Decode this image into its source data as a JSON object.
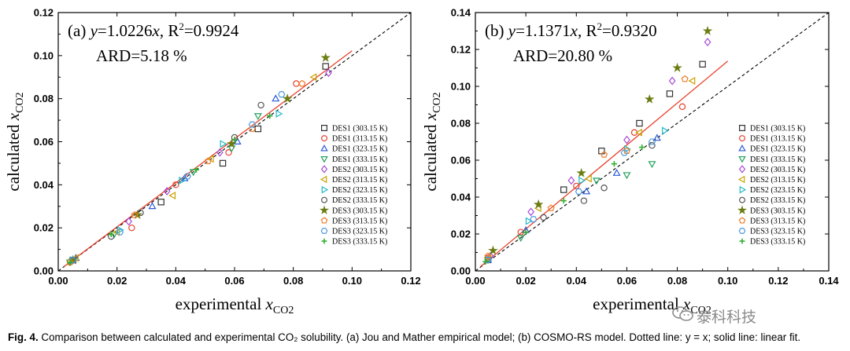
{
  "chart_data": [
    {
      "type": "scatter",
      "panel_label": "(a)",
      "equation_prefix": "y",
      "equation_mid": "=1.0226",
      "equation_x": "x",
      "equation_r2": ", R",
      "equation_r2sup": "2",
      "equation_r2val": "=0.9924",
      "ard": "ARD=5.18 %",
      "xlabel": "experimental x",
      "xlabel_sub": "CO2",
      "ylabel": "calculated x",
      "ylabel_sub": "CO2",
      "xlim": [
        0,
        0.12
      ],
      "ylim": [
        0,
        0.12
      ],
      "xticks": [
        "0.00",
        "0.02",
        "0.04",
        "0.06",
        "0.08",
        "0.10",
        "0.12"
      ],
      "yticks": [
        "0.00",
        "0.02",
        "0.04",
        "0.06",
        "0.08",
        "0.10",
        "0.12"
      ],
      "fit_slope": 1.0226,
      "fit_x_range": [
        0.002,
        0.1
      ],
      "legend_position": "right",
      "series": [
        {
          "name": "DES1 (303.15 K)",
          "marker": "square",
          "color": "#333333",
          "points": [
            [
              0.005,
              0.005
            ],
            [
              0.035,
              0.032
            ],
            [
              0.056,
              0.05
            ],
            [
              0.068,
              0.066
            ],
            [
              0.091,
              0.095
            ]
          ]
        },
        {
          "name": "DES1 (313.15 K)",
          "marker": "circle",
          "color": "#e8412c",
          "points": [
            [
              0.005,
              0.005
            ],
            [
              0.025,
              0.02
            ],
            [
              0.04,
              0.04
            ],
            [
              0.058,
              0.055
            ],
            [
              0.081,
              0.087
            ]
          ]
        },
        {
          "name": "DES1 (323.15 K)",
          "marker": "triangle-up",
          "color": "#2a5bd7",
          "points": [
            [
              0.006,
              0.006
            ],
            [
              0.032,
              0.03
            ],
            [
              0.043,
              0.043
            ],
            [
              0.061,
              0.06
            ],
            [
              0.074,
              0.08
            ]
          ]
        },
        {
          "name": "DES1 (333.15 K)",
          "marker": "triangle-down",
          "color": "#22a05a",
          "points": [
            [
              0.004,
              0.004
            ],
            [
              0.019,
              0.017
            ],
            [
              0.046,
              0.046
            ],
            [
              0.059,
              0.057
            ],
            [
              0.068,
              0.072
            ]
          ]
        },
        {
          "name": "DES2 (303.15 K)",
          "marker": "diamond",
          "color": "#a64ad6",
          "points": [
            [
              0.005,
              0.005
            ],
            [
              0.024,
              0.023
            ],
            [
              0.037,
              0.037
            ],
            [
              0.055,
              0.055
            ],
            [
              0.092,
              0.092
            ]
          ]
        },
        {
          "name": "DES2 (313.15 K)",
          "marker": "triangle-left",
          "color": "#c9a300",
          "points": [
            [
              0.006,
              0.006
            ],
            [
              0.02,
              0.018
            ],
            [
              0.039,
              0.035
            ],
            [
              0.052,
              0.052
            ],
            [
              0.087,
              0.09
            ]
          ]
        },
        {
          "name": "DES2 (323.15 K)",
          "marker": "triangle-right",
          "color": "#20b8c7",
          "points": [
            [
              0.005,
              0.005
            ],
            [
              0.021,
              0.019
            ],
            [
              0.042,
              0.042
            ],
            [
              0.056,
              0.059
            ],
            [
              0.075,
              0.073
            ]
          ]
        },
        {
          "name": "DES2 (333.15 K)",
          "marker": "circle",
          "color": "#555555",
          "points": [
            [
              0.005,
              0.005
            ],
            [
              0.018,
              0.016
            ],
            [
              0.028,
              0.027
            ],
            [
              0.06,
              0.062
            ],
            [
              0.069,
              0.077
            ]
          ]
        },
        {
          "name": "DES3 (303.15 K)",
          "marker": "star",
          "color": "#6b7d12",
          "points": [
            [
              0.005,
              0.005
            ],
            [
              0.027,
              0.026
            ],
            [
              0.059,
              0.059
            ],
            [
              0.078,
              0.08
            ],
            [
              0.091,
              0.099
            ]
          ]
        },
        {
          "name": "DES3 (313.15 K)",
          "marker": "pentagon",
          "color": "#f07a24",
          "points": [
            [
              0.004,
              0.004
            ],
            [
              0.026,
              0.026
            ],
            [
              0.051,
              0.051
            ],
            [
              0.066,
              0.066
            ],
            [
              0.083,
              0.087
            ]
          ]
        },
        {
          "name": "DES3 (323.15 K)",
          "marker": "hexagon",
          "color": "#4f9be0",
          "points": [
            [
              0.005,
              0.005
            ],
            [
              0.021,
              0.018
            ],
            [
              0.044,
              0.044
            ],
            [
              0.066,
              0.068
            ],
            [
              0.076,
              0.082
            ]
          ]
        },
        {
          "name": "DES3 (333.15 K)",
          "marker": "plus",
          "color": "#30b030",
          "points": [
            [
              0.004,
              0.004
            ],
            [
              0.018,
              0.017
            ],
            [
              0.047,
              0.047
            ],
            [
              0.06,
              0.061
            ],
            [
              0.072,
              0.072
            ]
          ]
        }
      ]
    },
    {
      "type": "scatter",
      "panel_label": "(b)",
      "equation_prefix": "y",
      "equation_mid": "=1.1371",
      "equation_x": "x",
      "equation_r2": ", R",
      "equation_r2sup": "2",
      "equation_r2val": "=0.9320",
      "ard": "ARD=20.80 %",
      "xlabel": "experimental x",
      "xlabel_sub": "CO2",
      "ylabel": "calculated x",
      "ylabel_sub": "CO2",
      "xlim": [
        0,
        0.14
      ],
      "ylim": [
        0,
        0.14
      ],
      "xticks": [
        "0.00",
        "0.02",
        "0.04",
        "0.06",
        "0.08",
        "0.10",
        "0.12",
        "0.14"
      ],
      "yticks": [
        "0.00",
        "0.02",
        "0.04",
        "0.06",
        "0.08",
        "0.10",
        "0.12",
        "0.14"
      ],
      "fit_slope": 1.1371,
      "fit_x_range": [
        0.002,
        0.1
      ],
      "legend_position": "right",
      "series": [
        {
          "name": "DES1 (303.15 K)",
          "marker": "square",
          "color": "#333333",
          "points": [
            [
              0.005,
              0.006
            ],
            [
              0.035,
              0.044
            ],
            [
              0.05,
              0.065
            ],
            [
              0.065,
              0.08
            ],
            [
              0.077,
              0.096
            ],
            [
              0.09,
              0.112
            ]
          ]
        },
        {
          "name": "DES1 (313.15 K)",
          "marker": "circle",
          "color": "#e8412c",
          "points": [
            [
              0.005,
              0.007
            ],
            [
              0.018,
              0.021
            ],
            [
              0.04,
              0.046
            ],
            [
              0.063,
              0.075
            ],
            [
              0.082,
              0.089
            ]
          ]
        },
        {
          "name": "DES1 (323.15 K)",
          "marker": "triangle-up",
          "color": "#2a5bd7",
          "points": [
            [
              0.005,
              0.006
            ],
            [
              0.02,
              0.022
            ],
            [
              0.044,
              0.043
            ],
            [
              0.056,
              0.053
            ],
            [
              0.072,
              0.072
            ]
          ]
        },
        {
          "name": "DES1 (333.15 K)",
          "marker": "triangle-down",
          "color": "#22a05a",
          "points": [
            [
              0.005,
              0.006
            ],
            [
              0.018,
              0.018
            ],
            [
              0.048,
              0.049
            ],
            [
              0.06,
              0.052
            ],
            [
              0.07,
              0.058
            ]
          ]
        },
        {
          "name": "DES2 (303.15 K)",
          "marker": "diamond",
          "color": "#a64ad6",
          "points": [
            [
              0.006,
              0.008
            ],
            [
              0.022,
              0.032
            ],
            [
              0.038,
              0.049
            ],
            [
              0.06,
              0.071
            ],
            [
              0.078,
              0.103
            ],
            [
              0.092,
              0.124
            ]
          ]
        },
        {
          "name": "DES2 (313.15 K)",
          "marker": "triangle-left",
          "color": "#c9a300",
          "points": [
            [
              0.005,
              0.007
            ],
            [
              0.025,
              0.034
            ],
            [
              0.045,
              0.05
            ],
            [
              0.065,
              0.075
            ],
            [
              0.086,
              0.103
            ]
          ]
        },
        {
          "name": "DES2 (323.15 K)",
          "marker": "triangle-right",
          "color": "#20b8c7",
          "points": [
            [
              0.005,
              0.006
            ],
            [
              0.021,
              0.027
            ],
            [
              0.042,
              0.049
            ],
            [
              0.06,
              0.066
            ],
            [
              0.075,
              0.076
            ]
          ]
        },
        {
          "name": "DES2 (333.15 K)",
          "marker": "circle",
          "color": "#555555",
          "points": [
            [
              0.005,
              0.006
            ],
            [
              0.027,
              0.029
            ],
            [
              0.043,
              0.038
            ],
            [
              0.051,
              0.045
            ],
            [
              0.07,
              0.068
            ]
          ]
        },
        {
          "name": "DES3 (303.15 K)",
          "marker": "star",
          "color": "#6b7d12",
          "points": [
            [
              0.007,
              0.011
            ],
            [
              0.025,
              0.036
            ],
            [
              0.042,
              0.053
            ],
            [
              0.069,
              0.093
            ],
            [
              0.08,
              0.11
            ],
            [
              0.092,
              0.13
            ]
          ]
        },
        {
          "name": "DES3 (313.15 K)",
          "marker": "pentagon",
          "color": "#f07a24",
          "points": [
            [
              0.005,
              0.008
            ],
            [
              0.03,
              0.034
            ],
            [
              0.051,
              0.063
            ],
            [
              0.06,
              0.065
            ],
            [
              0.083,
              0.104
            ]
          ]
        },
        {
          "name": "DES3 (323.15 K)",
          "marker": "hexagon",
          "color": "#4f9be0",
          "points": [
            [
              0.005,
              0.006
            ],
            [
              0.023,
              0.028
            ],
            [
              0.041,
              0.043
            ],
            [
              0.059,
              0.064
            ],
            [
              0.07,
              0.07
            ]
          ]
        },
        {
          "name": "DES3 (333.15 K)",
          "marker": "plus",
          "color": "#30b030",
          "points": [
            [
              0.004,
              0.005
            ],
            [
              0.02,
              0.021
            ],
            [
              0.035,
              0.038
            ],
            [
              0.055,
              0.058
            ],
            [
              0.066,
              0.067
            ]
          ]
        }
      ]
    }
  ],
  "caption": {
    "label": "Fig. 4.",
    "text": " Comparison between calculated and experimental CO₂ solubility. (a) Jou and Mather empirical model; (b) COSMO-RS model. Dotted line: y = x; solid line: linear fit."
  },
  "watermark": "泰科科技",
  "colors": {
    "fit_line": "#e8412c",
    "diag_line": "#000000"
  }
}
